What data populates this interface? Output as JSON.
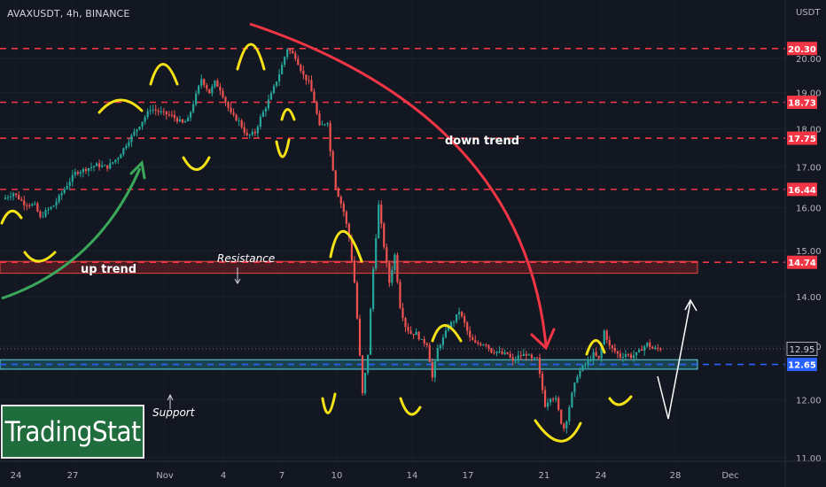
{
  "header": {
    "symbol_line": "AVAXUSDT, 4h, BINANCE"
  },
  "axis": {
    "unit": "USDT"
  },
  "logo": {
    "text": "TradingStat"
  },
  "colors": {
    "background": "#131722",
    "up": "#26a69a",
    "down": "#ef5350",
    "level_line": "#f23645",
    "annotation_yellow": "#f5e214",
    "uptrend_arrow": "#3aa85a",
    "downtrend_arrow": "#f23645",
    "support_line": "#2962ff"
  },
  "chart_data": {
    "type": "candlestick",
    "symbol": "AVAXUSDT",
    "timeframe": "4h",
    "exchange": "BINANCE",
    "ylim": [
      11.0,
      20.8
    ],
    "y_scale": "log",
    "y_ticks": [
      "11.00",
      "12.00",
      "13.00",
      "14.00",
      "15.00",
      "16.00",
      "17.00",
      "18.00",
      "19.00",
      "20.00"
    ],
    "x_ticks": [
      "24",
      "27",
      "Nov",
      "4",
      "7",
      "10",
      "14",
      "17",
      "21",
      "24",
      "28",
      "Dec"
    ],
    "price_levels": [
      {
        "value": "20.30",
        "style": "dashed-red"
      },
      {
        "value": "18.73",
        "style": "dashed-red"
      },
      {
        "value": "17.75",
        "style": "dashed-red"
      },
      {
        "value": "16.44",
        "style": "dashed-red"
      },
      {
        "value": "14.74",
        "style": "dashed-red"
      },
      {
        "value": "12.65",
        "style": "dashed-blue"
      }
    ],
    "last_price": "12.95",
    "zones": [
      {
        "name": "Resistance",
        "range": [
          14.5,
          14.76
        ]
      },
      {
        "name": "Support",
        "range": [
          12.56,
          12.74
        ]
      }
    ],
    "annotations": {
      "resistance_label": "Resistance",
      "support_label": "Support",
      "uptrend_label": "up trend",
      "downtrend_label": "down trend"
    },
    "price_path": [
      [
        0,
        16.2
      ],
      [
        4,
        16.35
      ],
      [
        8,
        16.1
      ],
      [
        12,
        16.05
      ],
      [
        14,
        15.75
      ],
      [
        16,
        15.9
      ],
      [
        19,
        16.05
      ],
      [
        23,
        16.45
      ],
      [
        27,
        16.85
      ],
      [
        31,
        16.95
      ],
      [
        35,
        17.05
      ],
      [
        39,
        17.0
      ],
      [
        43,
        17.25
      ],
      [
        47,
        17.7
      ],
      [
        51,
        18.1
      ],
      [
        55,
        18.55
      ],
      [
        59,
        18.45
      ],
      [
        63,
        18.35
      ],
      [
        67,
        18.15
      ],
      [
        69,
        18.25
      ],
      [
        71,
        18.7
      ],
      [
        74,
        19.4
      ],
      [
        77,
        19.0
      ],
      [
        79,
        19.3
      ],
      [
        81,
        19.1
      ],
      [
        85,
        18.4
      ],
      [
        88,
        18.2
      ],
      [
        91,
        17.8
      ],
      [
        94,
        17.9
      ],
      [
        96,
        18.3
      ],
      [
        98,
        18.6
      ],
      [
        100,
        18.95
      ],
      [
        103,
        19.55
      ],
      [
        106,
        20.3
      ],
      [
        109,
        20.05
      ],
      [
        112,
        19.5
      ],
      [
        114,
        19.3
      ],
      [
        116,
        18.75
      ],
      [
        118,
        18.05
      ],
      [
        121,
        18.2
      ],
      [
        122,
        17.4
      ],
      [
        124,
        16.5
      ],
      [
        127,
        15.9
      ],
      [
        129,
        15.3
      ],
      [
        131,
        14.3
      ],
      [
        133,
        12.8
      ],
      [
        134,
        12.1
      ],
      [
        136,
        12.85
      ],
      [
        138,
        14.6
      ],
      [
        140,
        16.05
      ],
      [
        142,
        15.1
      ],
      [
        144,
        14.3
      ],
      [
        146,
        14.9
      ],
      [
        148,
        13.8
      ],
      [
        150,
        13.4
      ],
      [
        152,
        13.25
      ],
      [
        154,
        13.25
      ],
      [
        156,
        13.1
      ],
      [
        158,
        13.05
      ],
      [
        160,
        12.4
      ],
      [
        162,
        12.95
      ],
      [
        164,
        13.15
      ],
      [
        166,
        13.4
      ],
      [
        168,
        13.5
      ],
      [
        170,
        13.7
      ],
      [
        172,
        13.45
      ],
      [
        174,
        13.15
      ],
      [
        176,
        13.05
      ],
      [
        178,
        13.05
      ],
      [
        180,
        13.05
      ],
      [
        182,
        12.9
      ],
      [
        184,
        12.9
      ],
      [
        186,
        12.85
      ],
      [
        188,
        12.85
      ],
      [
        190,
        12.7
      ],
      [
        192,
        12.8
      ],
      [
        195,
        12.85
      ],
      [
        197,
        12.75
      ],
      [
        199,
        12.75
      ],
      [
        200,
        12.45
      ],
      [
        202,
        11.9
      ],
      [
        204,
        12.05
      ],
      [
        206,
        12.0
      ],
      [
        208,
        11.6
      ],
      [
        209,
        11.5
      ],
      [
        210,
        11.65
      ],
      [
        212,
        12.1
      ],
      [
        214,
        12.45
      ],
      [
        216,
        12.6
      ],
      [
        218,
        12.7
      ],
      [
        220,
        12.85
      ],
      [
        222,
        12.75
      ],
      [
        224,
        13.3
      ],
      [
        226,
        13.0
      ],
      [
        228,
        12.9
      ],
      [
        230,
        12.8
      ],
      [
        232,
        12.85
      ],
      [
        234,
        12.8
      ],
      [
        236,
        12.85
      ],
      [
        238,
        12.95
      ],
      [
        240,
        13.05
      ],
      [
        242,
        12.95
      ],
      [
        244,
        12.95
      ],
      [
        245,
        12.95
      ]
    ]
  }
}
